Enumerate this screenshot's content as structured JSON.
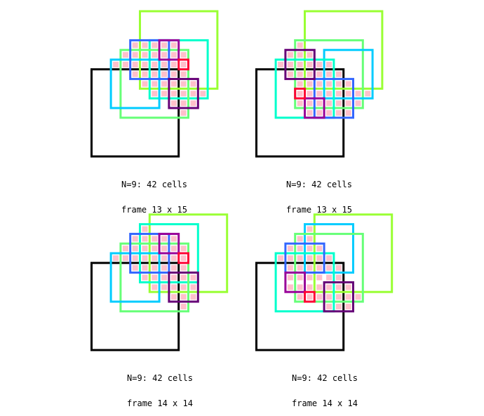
{
  "colors": {
    "cell": "#ffc0cb",
    "black": "#000000",
    "yellowgreen": "#99ff33",
    "turquoise": "#00ffcc",
    "lightgreen": "#66ff77",
    "cyan": "#00ccff",
    "blue": "#3366ff",
    "magenta": "#990099",
    "darkpurple": "#660077",
    "red": "#ff0033"
  },
  "panels": [
    {
      "caption_1": "N=9: 42 cells",
      "caption_2": "frame 13 x 15",
      "cell_rows": [
        [
          0,
          2,
          6
        ],
        [
          1,
          1,
          7
        ],
        [
          2,
          0,
          7
        ],
        [
          3,
          2,
          7
        ],
        [
          4,
          3,
          8
        ],
        [
          5,
          4,
          9
        ],
        [
          6,
          6,
          8
        ],
        [
          7,
          7,
          7
        ]
      ],
      "frames": [
        {
          "color": "black",
          "cols": [
            -2,
            6
          ],
          "rows": [
            3,
            11
          ]
        },
        {
          "color": "yellowgreen",
          "cols": [
            3,
            10
          ],
          "rows": [
            -3,
            4
          ]
        },
        {
          "color": "turquoise",
          "cols": [
            4,
            9
          ],
          "rows": [
            0,
            5
          ]
        },
        {
          "color": "lightgreen",
          "cols": [
            1,
            7
          ],
          "rows": [
            1,
            7
          ]
        },
        {
          "color": "cyan",
          "cols": [
            0,
            4
          ],
          "rows": [
            2,
            6
          ]
        },
        {
          "color": "blue",
          "cols": [
            2,
            5
          ],
          "rows": [
            0,
            3
          ]
        },
        {
          "color": "magenta",
          "cols": [
            5,
            6
          ],
          "rows": [
            0,
            1
          ]
        },
        {
          "color": "darkpurple",
          "cols": [
            6,
            8
          ],
          "rows": [
            4,
            6
          ]
        },
        {
          "color": "red",
          "cols": [
            7,
            7
          ],
          "rows": [
            2,
            2
          ]
        }
      ]
    },
    {
      "caption_1": "N=9: 42 cells",
      "caption_2": "frame 13 x 15",
      "cell_rows": [
        [
          0,
          2,
          2
        ],
        [
          1,
          1,
          3
        ],
        [
          2,
          0,
          5
        ],
        [
          3,
          1,
          6
        ],
        [
          4,
          2,
          7
        ],
        [
          5,
          2,
          9
        ],
        [
          6,
          2,
          8
        ],
        [
          7,
          3,
          7
        ]
      ],
      "frames": [
        {
          "color": "black",
          "cols": [
            -2,
            6
          ],
          "rows": [
            3,
            11
          ]
        },
        {
          "color": "yellowgreen",
          "cols": [
            3,
            10
          ],
          "rows": [
            -3,
            4
          ]
        },
        {
          "color": "lightgreen",
          "cols": [
            2,
            8
          ],
          "rows": [
            0,
            6
          ]
        },
        {
          "color": "cyan",
          "cols": [
            5,
            9
          ],
          "rows": [
            1,
            5
          ]
        },
        {
          "color": "turquoise",
          "cols": [
            0,
            5
          ],
          "rows": [
            2,
            7
          ]
        },
        {
          "color": "blue",
          "cols": [
            4,
            7
          ],
          "rows": [
            4,
            7
          ]
        },
        {
          "color": "darkpurple",
          "cols": [
            1,
            3
          ],
          "rows": [
            1,
            3
          ]
        },
        {
          "color": "magenta",
          "cols": [
            3,
            4
          ],
          "rows": [
            6,
            7
          ]
        },
        {
          "color": "red",
          "cols": [
            2,
            2
          ],
          "rows": [
            5,
            5
          ]
        }
      ]
    },
    {
      "caption_1": "N=9: 42 cells",
      "caption_2": "frame 14 x 14",
      "cell_rows": [
        [
          -1,
          3,
          3
        ],
        [
          0,
          2,
          6
        ],
        [
          1,
          1,
          7
        ],
        [
          2,
          0,
          7
        ],
        [
          3,
          2,
          7
        ],
        [
          4,
          3,
          8
        ],
        [
          5,
          4,
          8
        ],
        [
          6,
          6,
          8
        ],
        [
          7,
          7,
          7
        ]
      ],
      "frames": [
        {
          "color": "black",
          "cols": [
            -2,
            6
          ],
          "rows": [
            3,
            11
          ]
        },
        {
          "color": "yellowgreen",
          "cols": [
            4,
            11
          ],
          "rows": [
            -2,
            5
          ]
        },
        {
          "color": "turquoise",
          "cols": [
            3,
            8
          ],
          "rows": [
            -1,
            4
          ]
        },
        {
          "color": "lightgreen",
          "cols": [
            1,
            7
          ],
          "rows": [
            1,
            7
          ]
        },
        {
          "color": "cyan",
          "cols": [
            0,
            4
          ],
          "rows": [
            2,
            6
          ]
        },
        {
          "color": "blue",
          "cols": [
            2,
            5
          ],
          "rows": [
            0,
            3
          ]
        },
        {
          "color": "magenta",
          "cols": [
            5,
            6
          ],
          "rows": [
            0,
            1
          ]
        },
        {
          "color": "darkpurple",
          "cols": [
            6,
            8
          ],
          "rows": [
            4,
            6
          ]
        },
        {
          "color": "red",
          "cols": [
            7,
            7
          ],
          "rows": [
            2,
            2
          ]
        }
      ]
    },
    {
      "caption_1": "N=9: 42 cells",
      "caption_2": "frame 14 x 14",
      "cell_rows": [
        [
          -1,
          3,
          3
        ],
        [
          0,
          2,
          3
        ],
        [
          1,
          1,
          4
        ],
        [
          2,
          0,
          5
        ],
        [
          3,
          1,
          6
        ],
        [
          4,
          1,
          6
        ],
        [
          5,
          1,
          7
        ],
        [
          6,
          2,
          8
        ],
        [
          7,
          5,
          7
        ]
      ],
      "frames": [
        {
          "color": "black",
          "cols": [
            -2,
            6
          ],
          "rows": [
            3,
            11
          ]
        },
        {
          "color": "yellowgreen",
          "cols": [
            4,
            11
          ],
          "rows": [
            -2,
            5
          ]
        },
        {
          "color": "cyan",
          "cols": [
            3,
            7
          ],
          "rows": [
            -1,
            3
          ]
        },
        {
          "color": "lightgreen",
          "cols": [
            2,
            8
          ],
          "rows": [
            0,
            6
          ]
        },
        {
          "color": "turquoise",
          "cols": [
            0,
            5
          ],
          "rows": [
            2,
            7
          ]
        },
        {
          "color": "blue",
          "cols": [
            1,
            4
          ],
          "rows": [
            1,
            3
          ]
        },
        {
          "color": "magenta",
          "cols": [
            1,
            2
          ],
          "rows": [
            4,
            5
          ]
        },
        {
          "color": "darkpurple",
          "cols": [
            5,
            7
          ],
          "rows": [
            5,
            7
          ]
        },
        {
          "color": "red",
          "cols": [
            3,
            3
          ],
          "rows": [
            6,
            6
          ]
        }
      ]
    }
  ]
}
